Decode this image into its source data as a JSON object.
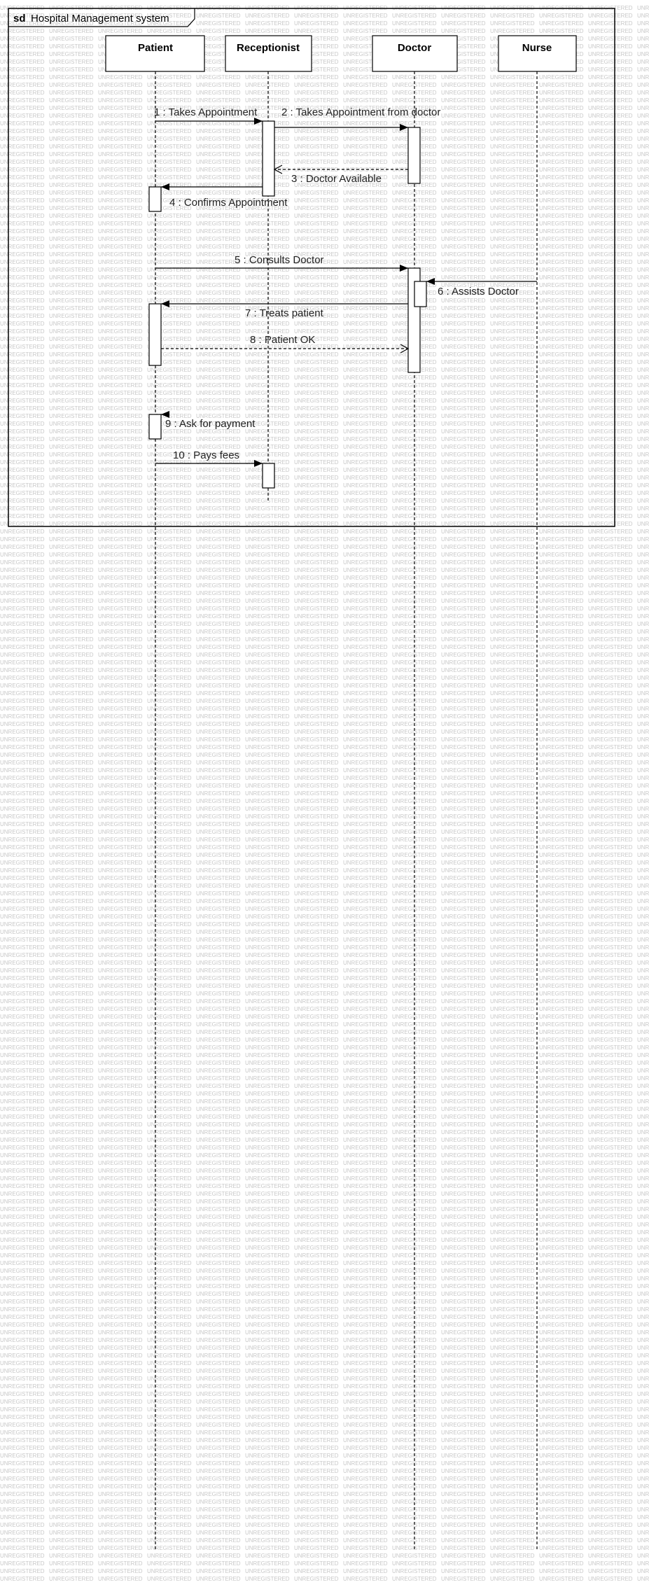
{
  "frame": {
    "keyword": "sd",
    "name": "Hospital Management system"
  },
  "watermark": "UNREGISTERED",
  "lifelines": [
    {
      "name": "Patient"
    },
    {
      "name": "Receptionist"
    },
    {
      "name": "Doctor"
    },
    {
      "name": "Nurse"
    }
  ],
  "messages": [
    {
      "label": "1 : Takes Appointment",
      "from": "Patient",
      "to": "Receptionist",
      "kind": "sync"
    },
    {
      "label": "2 : Takes Appointment from doctor",
      "from": "Receptionist",
      "to": "Doctor",
      "kind": "sync"
    },
    {
      "label": "3 : Doctor Available",
      "from": "Doctor",
      "to": "Receptionist",
      "kind": "reply"
    },
    {
      "label": "4 : Confirms Appointment",
      "from": "Receptionist",
      "to": "Patient",
      "kind": "sync"
    },
    {
      "label": "5 : Consults Doctor",
      "from": "Patient",
      "to": "Doctor",
      "kind": "sync"
    },
    {
      "label": "6 : Assists Doctor",
      "from": "Nurse",
      "to": "Doctor",
      "kind": "sync"
    },
    {
      "label": "7 : Treats patient",
      "from": "Doctor",
      "to": "Patient",
      "kind": "sync"
    },
    {
      "label": "8 : Patient OK",
      "from": "Patient",
      "to": "Doctor",
      "kind": "reply"
    },
    {
      "label": "9 : Ask for payment",
      "from": "Patient",
      "to": "Patient",
      "kind": "sync"
    },
    {
      "label": "10 : Pays fees",
      "from": "Patient",
      "to": "Receptionist",
      "kind": "sync"
    }
  ],
  "colors": {
    "line": "#000000",
    "watermark": "#c8c8c8",
    "background": "#ffffff"
  }
}
